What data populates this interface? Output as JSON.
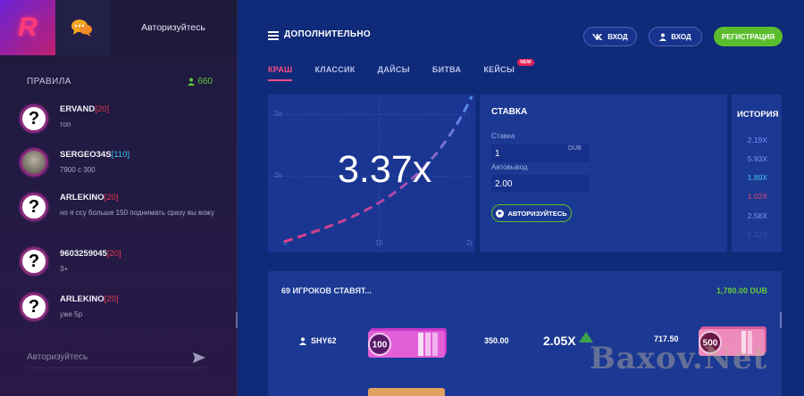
{
  "sidebar": {
    "logo_letter": "R",
    "auth_link": "Авторизуйтесь",
    "rules_label": "ПРАВИЛА",
    "online_count": "660",
    "messages": [
      {
        "name": "ERVAND",
        "level": "[20]",
        "level_color": "red",
        "text": "топ",
        "avatar": "question"
      },
      {
        "name": "SERGEO34S",
        "level": "[110]",
        "level_color": "blue",
        "text": "7900 с 300",
        "avatar": "photo"
      },
      {
        "name": "ARLEKINO",
        "level": "[20]",
        "level_color": "red",
        "text": "но я ссу больше 150 поднимать сразу вы вожу",
        "avatar": "question"
      },
      {
        "name": "9603259045",
        "level": "[20]",
        "level_color": "red",
        "text": "3+",
        "avatar": "question"
      },
      {
        "name": "ARLEKINO",
        "level": "[20]",
        "level_color": "red",
        "text": "уже 5р",
        "avatar": "question"
      }
    ],
    "chat_placeholder": "Авторизуйтесь"
  },
  "header": {
    "title": "ДОПОЛНИТЕЛЬНО",
    "vk_login": "ВХОД",
    "login": "ВХОД",
    "register": "РЕГИСТРАЦИЯ"
  },
  "tabs": [
    {
      "label": "КРАШ",
      "active": true
    },
    {
      "label": "КЛАССИК",
      "active": false
    },
    {
      "label": "ДАЙСЫ",
      "active": false
    },
    {
      "label": "БИТВА",
      "active": false
    },
    {
      "label": "КЕЙСЫ",
      "active": false,
      "badge": "NEW"
    }
  ],
  "graph": {
    "multiplier": "3.37x",
    "y_ticks": [
      "3x",
      "2x"
    ],
    "x_ticks": [
      "0",
      "15",
      "2("
    ]
  },
  "bet": {
    "title": "СТАВКА",
    "bet_label": "Ставка",
    "bet_value": "1",
    "bet_currency": "DUB",
    "auto_label": "Автовывод",
    "auto_value": "2.00",
    "auth_button": "АВТОРИЗУЙТЕСЬ"
  },
  "history": {
    "title": "ИСТОРИЯ",
    "items": [
      {
        "value": "2.19X",
        "color": "#7c94ff"
      },
      {
        "value": "5.93X",
        "color": "#7c94ff"
      },
      {
        "value": "1.89X",
        "color": "#46c4ec"
      },
      {
        "value": "1.02X",
        "color": "#e5456b"
      },
      {
        "value": "2.58X",
        "color": "#7c94ff"
      },
      {
        "value": "5.32X",
        "color": "#34539e"
      }
    ]
  },
  "players": {
    "title": "69 ИГРОКОВ СТАВЯТ...",
    "total": "1,780.00 DUB",
    "rows": [
      {
        "name": "SHY62",
        "bet": "350.00",
        "multiplier": "2.05X",
        "win": "717.50",
        "case_left": "100",
        "case_right": "500"
      }
    ]
  },
  "watermark": "Baxov.Net"
}
